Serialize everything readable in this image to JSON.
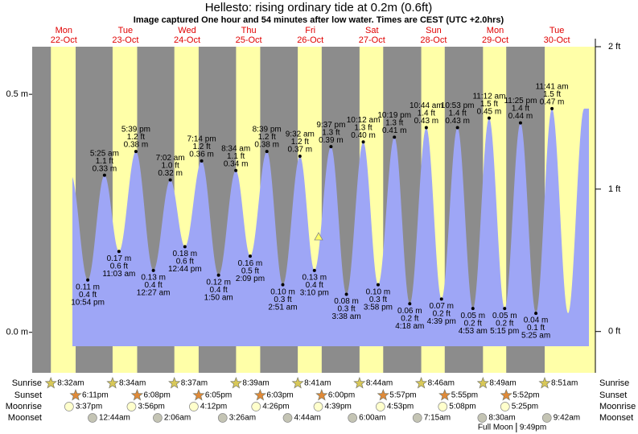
{
  "chart_data": {
    "type": "tide",
    "title": "Hellesto: rising  ordinary tide at 0.2m (0.6ft)",
    "subtitle": "Image captured One hour and 54 minutes after low water. Times are CEST (UTC +2.0hrs)",
    "ylim": [
      -0.085,
      0.6
    ],
    "yticks": [
      {
        "value": 0,
        "label": "0.0 m"
      },
      {
        "value": 0.5,
        "label": "0.5 m"
      }
    ],
    "y2lim": [
      -0.29,
      2.0
    ],
    "y2ticks": [
      {
        "value": 0,
        "label": "0 ft"
      },
      {
        "value": 1,
        "label": "1 ft"
      },
      {
        "value": 2,
        "label": "2 ft"
      }
    ],
    "row_labels": [
      "Sunrise",
      "Sunset",
      "Moonrise",
      "Moonset"
    ],
    "days": [
      {
        "name": "Mon",
        "date": "22-Oct",
        "sunrise": "8:32am",
        "sunset": "6:11pm",
        "moonrise": "3:37pm"
      },
      {
        "name": "Tue",
        "date": "23-Oct",
        "sunrise": "8:34am",
        "sunset": "6:08pm",
        "moonrise": "3:56pm",
        "moonset": "12:44am"
      },
      {
        "name": "Wed",
        "date": "24-Oct",
        "sunrise": "8:37am",
        "sunset": "6:05pm",
        "moonrise": "4:12pm",
        "moonset": "2:06am"
      },
      {
        "name": "Thu",
        "date": "25-Oct",
        "sunrise": "8:39am",
        "sunset": "6:03pm",
        "moonrise": "4:26pm",
        "moonset": "3:26am"
      },
      {
        "name": "Fri",
        "date": "26-Oct",
        "sunrise": "8:41am",
        "sunset": "6:00pm",
        "moonrise": "4:39pm",
        "moonset": "4:44am"
      },
      {
        "name": "Sat",
        "date": "27-Oct",
        "sunrise": "8:44am",
        "sunset": "5:57pm",
        "moonrise": "4:53pm",
        "moonset": "6:00am"
      },
      {
        "name": "Sun",
        "date": "28-Oct",
        "sunrise": "8:46am",
        "sunset": "5:55pm",
        "moonrise": "5:08pm",
        "moonset": "7:15am"
      },
      {
        "name": "Mon",
        "date": "29-Oct",
        "sunrise": "8:49am",
        "sunset": "5:52pm",
        "moonrise": "5:25pm",
        "moonset": "8:30am",
        "moon_phase": "Full Moon",
        "moon_phase_time": "9:49pm"
      },
      {
        "name": "Tue",
        "date": "30-Oct",
        "sunrise": "8:51am",
        "moonset": "9:42am"
      }
    ],
    "tides": [
      {
        "time": "10:54 pm",
        "m": 0.11,
        "m_label": "0.11 m",
        "ft_label": "0.4 ft"
      },
      {
        "time": "5:25 am",
        "m": 0.33,
        "m_label": "0.33 m",
        "ft_label": "1.1 ft"
      },
      {
        "time": "11:03 am",
        "m": 0.17,
        "m_label": "0.17 m",
        "ft_label": "0.6 ft"
      },
      {
        "time": "5:39 pm",
        "m": 0.38,
        "m_label": "0.38 m",
        "ft_label": "1.2 ft"
      },
      {
        "time": "12:27 am",
        "m": 0.13,
        "m_label": "0.13 m",
        "ft_label": "0.4 ft"
      },
      {
        "time": "7:02 am",
        "m": 0.32,
        "m_label": "0.32 m",
        "ft_label": "1.0 ft"
      },
      {
        "time": "12:44 pm",
        "m": 0.18,
        "m_label": "0.18 m",
        "ft_label": "0.6 ft"
      },
      {
        "time": "7:14 pm",
        "m": 0.36,
        "m_label": "0.36 m",
        "ft_label": "1.2 ft"
      },
      {
        "time": "1:50 am",
        "m": 0.12,
        "m_label": "0.12 m",
        "ft_label": "0.4 ft"
      },
      {
        "time": "8:34 am",
        "m": 0.34,
        "m_label": "0.34 m",
        "ft_label": "1.1 ft"
      },
      {
        "time": "2:09 pm",
        "m": 0.16,
        "m_label": "0.16 m",
        "ft_label": "0.5 ft"
      },
      {
        "time": "8:39 pm",
        "m": 0.38,
        "m_label": "0.38 m",
        "ft_label": "1.2 ft"
      },
      {
        "time": "2:51 am",
        "m": 0.1,
        "m_label": "0.10 m",
        "ft_label": "0.3 ft"
      },
      {
        "time": "9:32 am",
        "m": 0.37,
        "m_label": "0.37 m",
        "ft_label": "1.2 ft"
      },
      {
        "time": "3:10 pm",
        "m": 0.13,
        "m_label": "0.13 m",
        "ft_label": "0.4 ft"
      },
      {
        "time": "9:37 pm",
        "m": 0.39,
        "m_label": "0.39 m",
        "ft_label": "1.3 ft"
      },
      {
        "time": "3:38 am",
        "m": 0.08,
        "m_label": "0.08 m",
        "ft_label": "0.3 ft"
      },
      {
        "time": "10:12 am",
        "m": 0.4,
        "m_label": "0.40 m",
        "ft_label": "1.3 ft"
      },
      {
        "time": "3:58 pm",
        "m": 0.1,
        "m_label": "0.10 m",
        "ft_label": "0.3 ft"
      },
      {
        "time": "10:19 pm",
        "m": 0.41,
        "m_label": "0.41 m",
        "ft_label": "1.3 ft"
      },
      {
        "time": "4:18 am",
        "m": 0.06,
        "m_label": "0.06 m",
        "ft_label": "0.2 ft"
      },
      {
        "time": "10:44 am",
        "m": 0.43,
        "m_label": "0.43 m",
        "ft_label": "1.4 ft"
      },
      {
        "time": "4:39 pm",
        "m": 0.07,
        "m_label": "0.07 m",
        "ft_label": "0.2 ft"
      },
      {
        "time": "10:53 pm",
        "m": 0.43,
        "m_label": "0.43 m",
        "ft_label": "1.4 ft"
      },
      {
        "time": "4:53 am",
        "m": 0.05,
        "m_label": "0.05 m",
        "ft_label": "0.2 ft"
      },
      {
        "time": "11:12 am",
        "m": 0.45,
        "m_label": "0.45 m",
        "ft_label": "1.5 ft"
      },
      {
        "time": "5:15 pm",
        "m": 0.05,
        "m_label": "0.05 m",
        "ft_label": "0.2 ft"
      },
      {
        "time": "11:25 pm",
        "m": 0.44,
        "m_label": "0.44 m",
        "ft_label": "1.4 ft"
      },
      {
        "time": "5:25 am",
        "m": 0.04,
        "m_label": "0.04 m",
        "ft_label": "0.1 ft"
      },
      {
        "time": "11:41 am",
        "m": 0.47,
        "m_label": "0.47 m",
        "ft_label": "1.5 ft"
      }
    ]
  }
}
